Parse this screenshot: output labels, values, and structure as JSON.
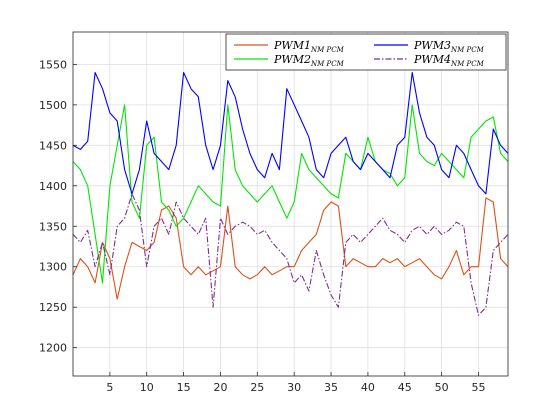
{
  "chart_data": {
    "type": "line",
    "title": "",
    "xlabel": "",
    "ylabel": "",
    "xlim": [
      0,
      59
    ],
    "ylim": [
      1165,
      1590
    ],
    "xticks": [
      5,
      10,
      15,
      20,
      25,
      30,
      35,
      40,
      45,
      50,
      55
    ],
    "yticks": [
      1200,
      1250,
      1300,
      1350,
      1400,
      1450,
      1500,
      1550
    ],
    "grid": true,
    "legend_position": "top-right",
    "series": [
      {
        "name": "PWM1",
        "subscript": "NM PCM",
        "color": "#D95319",
        "style": "solid",
        "x": [
          0,
          1,
          2,
          3,
          4,
          5,
          6,
          7,
          8,
          9,
          10,
          11,
          12,
          13,
          14,
          15,
          16,
          17,
          18,
          19,
          20,
          21,
          22,
          23,
          24,
          25,
          26,
          27,
          28,
          29,
          30,
          31,
          32,
          33,
          34,
          35,
          36,
          37,
          38,
          39,
          40,
          41,
          42,
          43,
          44,
          45,
          46,
          47,
          48,
          49,
          50,
          51,
          52,
          53,
          54,
          55,
          56,
          57,
          58,
          59
        ],
        "y": [
          1290,
          1310,
          1300,
          1280,
          1330,
          1310,
          1260,
          1300,
          1330,
          1325,
          1320,
          1330,
          1370,
          1375,
          1360,
          1300,
          1290,
          1300,
          1290,
          1295,
          1300,
          1375,
          1300,
          1290,
          1285,
          1290,
          1300,
          1290,
          1295,
          1300,
          1300,
          1320,
          1330,
          1340,
          1370,
          1380,
          1375,
          1300,
          1310,
          1305,
          1300,
          1300,
          1310,
          1305,
          1310,
          1300,
          1305,
          1310,
          1300,
          1290,
          1285,
          1300,
          1320,
          1290,
          1300,
          1300,
          1385,
          1380,
          1310,
          1300
        ]
      },
      {
        "name": "PWM2",
        "subscript": "NM PCM",
        "color": "#00E600",
        "style": "solid",
        "x": [
          0,
          1,
          2,
          3,
          4,
          5,
          6,
          7,
          8,
          9,
          10,
          11,
          12,
          13,
          14,
          15,
          16,
          17,
          18,
          19,
          20,
          21,
          22,
          23,
          24,
          25,
          26,
          27,
          28,
          29,
          30,
          31,
          32,
          33,
          34,
          35,
          36,
          37,
          38,
          39,
          40,
          41,
          42,
          43,
          44,
          45,
          46,
          47,
          48,
          49,
          50,
          51,
          52,
          53,
          54,
          55,
          56,
          57,
          58,
          59
        ],
        "y": [
          1430,
          1420,
          1400,
          1340,
          1280,
          1400,
          1450,
          1500,
          1380,
          1360,
          1450,
          1460,
          1380,
          1370,
          1350,
          1360,
          1380,
          1400,
          1390,
          1380,
          1375,
          1500,
          1420,
          1400,
          1390,
          1380,
          1390,
          1400,
          1380,
          1360,
          1380,
          1440,
          1420,
          1410,
          1400,
          1390,
          1385,
          1440,
          1430,
          1420,
          1460,
          1430,
          1420,
          1415,
          1400,
          1410,
          1500,
          1440,
          1430,
          1425,
          1440,
          1430,
          1420,
          1410,
          1460,
          1470,
          1480,
          1485,
          1440,
          1430
        ]
      },
      {
        "name": "PWM3",
        "subscript": "NM PCM",
        "color": "#0000FF",
        "style": "solid",
        "x": [
          0,
          1,
          2,
          3,
          4,
          5,
          6,
          7,
          8,
          9,
          10,
          11,
          12,
          13,
          14,
          15,
          16,
          17,
          18,
          19,
          20,
          21,
          22,
          23,
          24,
          25,
          26,
          27,
          28,
          29,
          30,
          31,
          32,
          33,
          34,
          35,
          36,
          37,
          38,
          39,
          40,
          41,
          42,
          43,
          44,
          45,
          46,
          47,
          48,
          49,
          50,
          51,
          52,
          53,
          54,
          55,
          56,
          57,
          58,
          59
        ],
        "y": [
          1450,
          1445,
          1455,
          1540,
          1520,
          1490,
          1480,
          1420,
          1390,
          1420,
          1480,
          1440,
          1430,
          1420,
          1450,
          1540,
          1520,
          1510,
          1450,
          1420,
          1450,
          1530,
          1510,
          1470,
          1440,
          1420,
          1410,
          1440,
          1420,
          1520,
          1500,
          1480,
          1460,
          1420,
          1410,
          1440,
          1450,
          1460,
          1430,
          1420,
          1440,
          1430,
          1420,
          1410,
          1450,
          1460,
          1540,
          1490,
          1460,
          1450,
          1420,
          1410,
          1450,
          1440,
          1420,
          1400,
          1390,
          1470,
          1450,
          1440
        ]
      },
      {
        "name": "PWM4",
        "subscript": "NM PCM",
        "color": "#7E2F8E",
        "style": "dashdot",
        "x": [
          0,
          1,
          2,
          3,
          4,
          5,
          6,
          7,
          8,
          9,
          10,
          11,
          12,
          13,
          14,
          15,
          16,
          17,
          18,
          19,
          20,
          21,
          22,
          23,
          24,
          25,
          26,
          27,
          28,
          29,
          30,
          31,
          32,
          33,
          34,
          35,
          36,
          37,
          38,
          39,
          40,
          41,
          42,
          43,
          44,
          45,
          46,
          47,
          48,
          49,
          50,
          51,
          52,
          53,
          54,
          55,
          56,
          57,
          58,
          59
        ],
        "y": [
          1340,
          1330,
          1345,
          1300,
          1330,
          1290,
          1350,
          1360,
          1390,
          1370,
          1300,
          1350,
          1360,
          1340,
          1380,
          1360,
          1350,
          1340,
          1360,
          1250,
          1360,
          1340,
          1350,
          1355,
          1350,
          1340,
          1345,
          1330,
          1320,
          1310,
          1280,
          1290,
          1270,
          1320,
          1290,
          1265,
          1250,
          1330,
          1340,
          1330,
          1340,
          1350,
          1360,
          1345,
          1340,
          1330,
          1345,
          1350,
          1340,
          1350,
          1340,
          1345,
          1355,
          1350,
          1280,
          1240,
          1250,
          1320,
          1330,
          1340
        ]
      }
    ]
  }
}
